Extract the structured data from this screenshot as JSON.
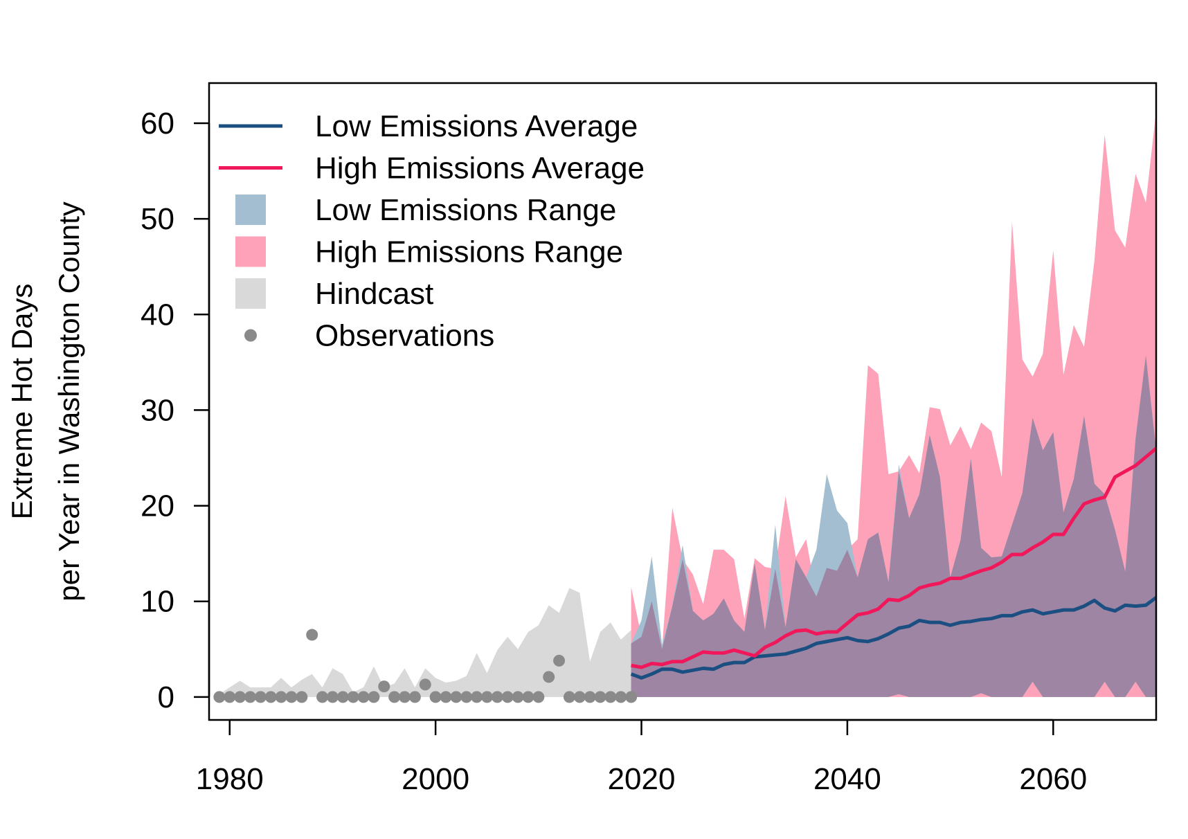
{
  "chart_data": {
    "type": "area",
    "title": "",
    "xlabel": "",
    "ylabel_lines": [
      "Extreme Hot Days",
      "per Year in Washington County"
    ],
    "xlim": [
      1978,
      2070
    ],
    "ylim": [
      -2.4,
      64.2
    ],
    "x_ticks": [
      1980,
      2000,
      2020,
      2040,
      2060
    ],
    "y_ticks": [
      0,
      10,
      20,
      30,
      40,
      50,
      60
    ],
    "legend_position": "top-left",
    "legend": [
      {
        "label": "Low Emissions Average",
        "kind": "line",
        "color": "#1b4f82"
      },
      {
        "label": "High Emissions Average",
        "kind": "line",
        "color": "#f0185a"
      },
      {
        "label": "Low Emissions Range",
        "kind": "fill",
        "color": "#a3bdd1"
      },
      {
        "label": "High Emissions Range",
        "kind": "fill",
        "color": "#fda2b8"
      },
      {
        "label": "Hindcast",
        "kind": "fill",
        "color": "#d9d9d9"
      },
      {
        "label": "Observations",
        "kind": "point",
        "color": "#8a8a8a"
      }
    ],
    "colors": {
      "low_avg": "#1b4f82",
      "high_avg": "#f0185a",
      "low_range": "#a3bdd1",
      "high_range": "#fda2b8",
      "overlap": "#9e85a3",
      "hindcast": "#d9d9d9",
      "observations": "#8a8a8a"
    },
    "series": [
      {
        "name": "Hindcast",
        "x": [
          1979,
          1980,
          1981,
          1982,
          1983,
          1984,
          1985,
          1986,
          1987,
          1988,
          1989,
          1990,
          1991,
          1992,
          1993,
          1994,
          1995,
          1996,
          1997,
          1998,
          1999,
          2000,
          2001,
          2002,
          2003,
          2004,
          2005,
          2006,
          2007,
          2008,
          2009,
          2010,
          2011,
          2012,
          2013,
          2014,
          2015,
          2016,
          2017,
          2018,
          2019
        ],
        "low": [
          0,
          0,
          0,
          0,
          0,
          0,
          0,
          0,
          0,
          0,
          0,
          0,
          0,
          0,
          0,
          0,
          0,
          0,
          0,
          0,
          0,
          0,
          0,
          0,
          0,
          0,
          0,
          0,
          0,
          0,
          0,
          0,
          0,
          0,
          0,
          0,
          0,
          0,
          0,
          0,
          0
        ],
        "high": [
          0.3,
          1.0,
          1.7,
          1.0,
          1.0,
          1.0,
          2.0,
          1.0,
          1.8,
          2.4,
          1.0,
          3.0,
          2.4,
          0.5,
          1.0,
          3.2,
          1.0,
          1.4,
          3.0,
          1.0,
          3.0,
          2.0,
          1.5,
          1.7,
          2.2,
          4.6,
          2.5,
          4.9,
          6.3,
          5.0,
          6.8,
          7.5,
          9.6,
          8.8,
          11.4,
          10.9,
          3.7,
          6.8,
          7.8,
          6.0,
          7.0
        ]
      },
      {
        "name": "Observations",
        "x": [
          1979,
          1980,
          1981,
          1982,
          1983,
          1984,
          1985,
          1986,
          1987,
          1988,
          1989,
          1990,
          1991,
          1992,
          1993,
          1994,
          1995,
          1996,
          1997,
          1998,
          1999,
          2000,
          2001,
          2002,
          2003,
          2004,
          2005,
          2006,
          2007,
          2008,
          2009,
          2010,
          2011,
          2012,
          2013,
          2014,
          2015,
          2016,
          2017,
          2018,
          2019
        ],
        "y": [
          0,
          0,
          0,
          0,
          0,
          0,
          0,
          0,
          0,
          6.5,
          0,
          0,
          0,
          0,
          0,
          0,
          1.1,
          0,
          0,
          0,
          1.3,
          0,
          0,
          0,
          0,
          0,
          0,
          0,
          0,
          0,
          0,
          0,
          2.1,
          3.8,
          0,
          0,
          0,
          0,
          0,
          0,
          0
        ]
      },
      {
        "name": "Low Emissions Range",
        "x": [
          2019,
          2020,
          2021,
          2022,
          2023,
          2024,
          2025,
          2026,
          2027,
          2028,
          2029,
          2030,
          2031,
          2032,
          2033,
          2034,
          2035,
          2036,
          2037,
          2038,
          2039,
          2040,
          2041,
          2042,
          2043,
          2044,
          2045,
          2046,
          2047,
          2048,
          2049,
          2050,
          2051,
          2052,
          2053,
          2054,
          2055,
          2056,
          2057,
          2058,
          2059,
          2060,
          2061,
          2062,
          2063,
          2064,
          2065,
          2066,
          2067,
          2068,
          2069,
          2070
        ],
        "low": [
          0,
          0,
          0,
          0,
          0,
          0,
          0,
          0,
          0,
          0,
          0,
          0,
          0,
          0,
          0,
          0,
          0,
          0,
          0,
          0,
          0,
          0,
          0,
          0,
          0,
          0,
          0.3,
          0,
          0,
          0,
          0,
          0,
          0,
          0,
          0.4,
          0,
          0,
          0,
          0,
          1.6,
          0,
          0,
          0,
          0,
          0,
          0,
          1.6,
          0,
          0,
          1.6,
          0,
          0
        ],
        "high": [
          5.6,
          8.0,
          14.7,
          5.5,
          9.5,
          15.9,
          9.0,
          8.0,
          8.7,
          10.3,
          8.0,
          6.8,
          14.0,
          7.0,
          18.0,
          7.3,
          14.4,
          12.5,
          15.4,
          23.3,
          19.5,
          18.2,
          12.5,
          16.5,
          17.2,
          12.0,
          24.3,
          18.7,
          21.2,
          27.4,
          23.0,
          12.5,
          16.4,
          24.9,
          15.6,
          14.6,
          14.7,
          18.0,
          21.3,
          29.2,
          25.8,
          27.7,
          19.3,
          22.8,
          29.4,
          22.3,
          21.2,
          17.5,
          13.1,
          27.0,
          35.7,
          25.8
        ]
      },
      {
        "name": "High Emissions Range",
        "x": [
          2019,
          2020,
          2021,
          2022,
          2023,
          2024,
          2025,
          2026,
          2027,
          2028,
          2029,
          2030,
          2031,
          2032,
          2033,
          2034,
          2035,
          2036,
          2037,
          2038,
          2039,
          2040,
          2041,
          2042,
          2043,
          2044,
          2045,
          2046,
          2047,
          2048,
          2049,
          2050,
          2051,
          2052,
          2053,
          2054,
          2055,
          2056,
          2057,
          2058,
          2059,
          2060,
          2061,
          2062,
          2063,
          2064,
          2065,
          2066,
          2067,
          2068,
          2069,
          2070
        ],
        "low": [
          0,
          0,
          0,
          0,
          0,
          0,
          0,
          0,
          0,
          0,
          0,
          0,
          0,
          0,
          0,
          0,
          0,
          0,
          0,
          0,
          0,
          0,
          0,
          0,
          0,
          0,
          0,
          0,
          0,
          0,
          0,
          0,
          0,
          0,
          0,
          0,
          0,
          0,
          0,
          0,
          0,
          0,
          0,
          0,
          0,
          0,
          0,
          0,
          0,
          0,
          0,
          0
        ],
        "high": [
          11.5,
          6.3,
          10.0,
          5.0,
          19.8,
          14.4,
          12.8,
          9.7,
          15.4,
          15.4,
          14.4,
          8.2,
          14.5,
          13.6,
          13.4,
          21.0,
          14.6,
          16.5,
          10.5,
          13.5,
          13.2,
          15.4,
          16.5,
          34.7,
          33.8,
          23.3,
          23.6,
          25.3,
          23.4,
          30.3,
          30.1,
          26.3,
          28.3,
          25.9,
          28.7,
          27.8,
          23.0,
          49.7,
          35.3,
          33.5,
          35.9,
          46.7,
          33.7,
          38.9,
          36.6,
          45.6,
          58.8,
          48.8,
          47.0,
          54.7,
          51.7,
          61.3
        ]
      },
      {
        "name": "Low Emissions Average",
        "x": [
          2019,
          2020,
          2021,
          2022,
          2023,
          2024,
          2025,
          2026,
          2027,
          2028,
          2029,
          2030,
          2031,
          2032,
          2033,
          2034,
          2035,
          2036,
          2037,
          2038,
          2039,
          2040,
          2041,
          2042,
          2043,
          2044,
          2045,
          2046,
          2047,
          2048,
          2049,
          2050,
          2051,
          2052,
          2053,
          2054,
          2055,
          2056,
          2057,
          2058,
          2059,
          2060,
          2061,
          2062,
          2063,
          2064,
          2065,
          2066,
          2067,
          2068,
          2069,
          2070
        ],
        "y": [
          2.4,
          2.0,
          2.4,
          2.9,
          2.9,
          2.6,
          2.8,
          3.0,
          2.9,
          3.4,
          3.6,
          3.6,
          4.2,
          4.3,
          4.4,
          4.5,
          4.8,
          5.1,
          5.6,
          5.8,
          6.0,
          6.2,
          5.9,
          5.8,
          6.1,
          6.6,
          7.2,
          7.4,
          8.0,
          7.8,
          7.8,
          7.5,
          7.8,
          7.9,
          8.1,
          8.2,
          8.5,
          8.5,
          8.9,
          9.1,
          8.7,
          8.9,
          9.1,
          9.1,
          9.5,
          10.1,
          9.3,
          9.0,
          9.6,
          9.5,
          9.6,
          10.4
        ]
      },
      {
        "name": "High Emissions Average",
        "x": [
          2019,
          2020,
          2021,
          2022,
          2023,
          2024,
          2025,
          2026,
          2027,
          2028,
          2029,
          2030,
          2031,
          2032,
          2033,
          2034,
          2035,
          2036,
          2037,
          2038,
          2039,
          2040,
          2041,
          2042,
          2043,
          2044,
          2045,
          2046,
          2047,
          2048,
          2049,
          2050,
          2051,
          2052,
          2053,
          2054,
          2055,
          2056,
          2057,
          2058,
          2059,
          2060,
          2061,
          2062,
          2063,
          2064,
          2065,
          2066,
          2067,
          2068,
          2069,
          2070
        ],
        "y": [
          3.3,
          3.1,
          3.5,
          3.4,
          3.7,
          3.7,
          4.2,
          4.7,
          4.6,
          4.6,
          4.9,
          4.6,
          4.3,
          5.2,
          5.7,
          6.4,
          6.9,
          7.0,
          6.6,
          6.8,
          6.8,
          7.7,
          8.6,
          8.8,
          9.2,
          10.2,
          10.1,
          10.6,
          11.4,
          11.7,
          11.9,
          12.4,
          12.4,
          12.8,
          13.2,
          13.5,
          14.1,
          14.9,
          14.9,
          15.6,
          16.2,
          17.0,
          17.0,
          18.7,
          20.2,
          20.6,
          20.9,
          23.0,
          23.6,
          24.2,
          25.1,
          26.0
        ]
      }
    ]
  }
}
